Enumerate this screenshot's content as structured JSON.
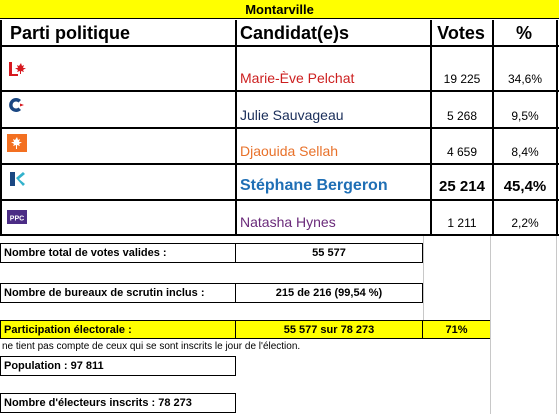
{
  "title": "Montarville",
  "headers": {
    "party": "Parti politique",
    "candidate": "Candidat(e)s",
    "votes": "Votes",
    "percent": "%"
  },
  "rows": [
    {
      "party_icon": "liberal-logo-icon",
      "candidate": "Marie-Ève Pelchat",
      "votes": "19 225",
      "percent": "34,6%",
      "color": "#cc1f1f"
    },
    {
      "party_icon": "conservative-logo-icon",
      "candidate": "Julie Sauvageau",
      "votes": "5 268",
      "percent": "9,5%",
      "color": "#1a2e5a"
    },
    {
      "party_icon": "ndp-logo-icon",
      "candidate": "Djaouida Sellah",
      "votes": "4 659",
      "percent": "8,4%",
      "color": "#e8712a"
    },
    {
      "party_icon": "bloc-logo-icon",
      "candidate": "Stéphane Bergeron",
      "votes": "25 214",
      "percent": "45,4%",
      "color": "#1f6fb5"
    },
    {
      "party_icon": "ppc-logo-icon",
      "candidate": "Natasha Hynes",
      "votes": "1 211",
      "percent": "2,2%",
      "color": "#6a2a7a"
    }
  ],
  "summary": {
    "valid_votes_label": "Nombre total de votes valides :",
    "valid_votes_value": "55 577",
    "polling_label": "Nombre de bureaux de scrutin inclus :",
    "polling_value": "215 de 216 (99,54 %)",
    "turnout_label": "Participation électorale :",
    "turnout_value": "55 577 sur 78 273",
    "turnout_percent": "71%",
    "turnout_note": "ne tient pas compte de ceux qui se sont inscrits le jour de l'élection.",
    "population_label": "Population : 97 811",
    "registered_label": "Nombre d'électeurs inscrits : 78 273"
  },
  "colors": {
    "highlight": "#ffff00",
    "liberal": "#d71920",
    "conservative": "#1a4782",
    "ndp": "#f37021",
    "bloc": "#33b2cc",
    "ppc": "#4b2c85"
  }
}
